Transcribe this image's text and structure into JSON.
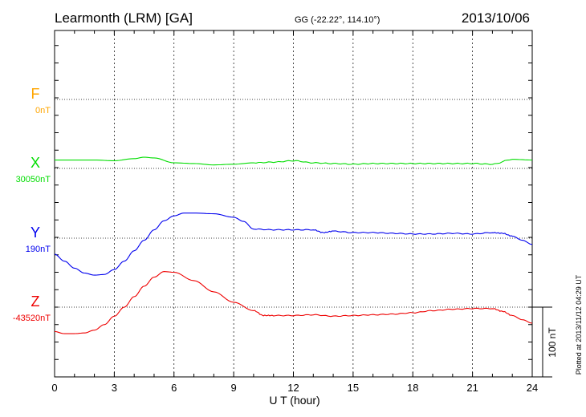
{
  "chart_data": {
    "type": "line",
    "title": "Learmonth (LRM)  [GA]",
    "subtitle": "GG (-22.22°, 114.10°)",
    "date": "2013/10/06",
    "xlabel": "U T (hour)",
    "xlim": [
      0,
      24
    ],
    "xticks": [
      "0",
      "3",
      "6",
      "9",
      "12",
      "15",
      "18",
      "21",
      "24"
    ],
    "scale_label": "100 nT",
    "plotted_note": "Plotted at 2013/11/12 04:29 UT",
    "grid": true,
    "series": [
      {
        "name": "F",
        "baseline_label": "0nT",
        "color": "#ffa500",
        "x": [],
        "values": []
      },
      {
        "name": "X",
        "baseline_label": "30050nT",
        "color": "#00dd00",
        "x": [
          0,
          1,
          2,
          3,
          4,
          4.5,
          5,
          6,
          7,
          8,
          9,
          10,
          11,
          12,
          13,
          14,
          15,
          16,
          17,
          18,
          19,
          20,
          21,
          22,
          23,
          24
        ],
        "values": [
          12,
          12,
          12,
          11,
          14,
          16,
          15,
          8,
          7,
          5,
          6,
          8,
          9,
          11,
          8,
          7,
          6,
          7,
          7,
          7,
          7,
          7,
          7,
          6,
          13,
          12
        ]
      },
      {
        "name": "Y",
        "baseline_label": "190nT",
        "color": "#0000ee",
        "x": [
          0,
          0.5,
          1,
          1.5,
          2,
          2.5,
          3,
          3.5,
          4,
          4.5,
          5,
          5.5,
          6,
          6.5,
          7,
          8,
          9,
          9.5,
          10,
          11,
          12,
          13,
          13.5,
          14,
          15,
          16,
          17,
          18,
          19,
          20,
          21,
          22,
          22.5,
          23,
          23.5,
          24
        ],
        "values": [
          -23,
          -33,
          -43,
          -50,
          -53,
          -52,
          -45,
          -33,
          -18,
          -3,
          12,
          25,
          32,
          36,
          36,
          35,
          30,
          24,
          13,
          12,
          12,
          12,
          8,
          10,
          8,
          8,
          7,
          6,
          6,
          7,
          6,
          8,
          7,
          3,
          -3,
          -9
        ]
      },
      {
        "name": "Z",
        "baseline_label": "-43520nT",
        "color": "#ee0000",
        "x": [
          0,
          0.5,
          1,
          1.5,
          2,
          2.5,
          3,
          3.5,
          4,
          4.5,
          5,
          5.5,
          6,
          7,
          8,
          9,
          10,
          10.5,
          11,
          12,
          13,
          14,
          15,
          16,
          17,
          18,
          19,
          20,
          21,
          22,
          22.5,
          23,
          23.5,
          24
        ],
        "values": [
          -35,
          -38,
          -38,
          -37,
          -33,
          -25,
          -13,
          0,
          15,
          30,
          43,
          51,
          50,
          38,
          22,
          7,
          -5,
          -12,
          -12,
          -12,
          -11,
          -13,
          -12,
          -11,
          -10,
          -8,
          -5,
          -3,
          -2,
          -2,
          -6,
          -12,
          -18,
          -23
        ]
      }
    ]
  }
}
